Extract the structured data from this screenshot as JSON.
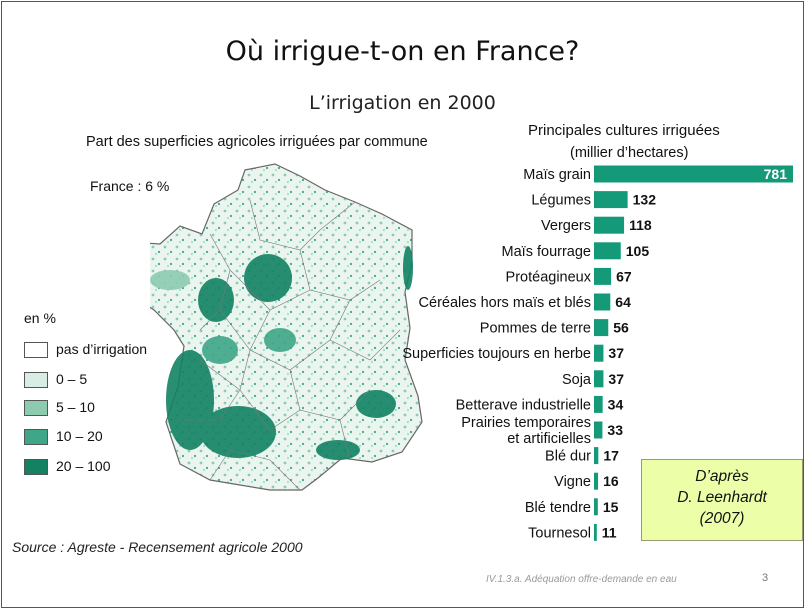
{
  "slide": {
    "title": "Où irrigue-t-on en France?",
    "subtitle": "L’irrigation en 2000",
    "footer": "IV.1.3.a. Adéquation offre-demande en eau",
    "page_number": "3"
  },
  "map": {
    "title": "Part des superficies agricoles irriguées par commune",
    "france_label": "France : 6 %",
    "legend_title": "en %",
    "legend": [
      {
        "label": "pas d’irrigation",
        "color": "#ffffff"
      },
      {
        "label": "0 – 5",
        "color": "#d8ede3"
      },
      {
        "label": "5 – 10",
        "color": "#8dcbb1"
      },
      {
        "label": "10 – 20",
        "color": "#3fa688"
      },
      {
        "label": "20 – 100",
        "color": "#128263"
      }
    ],
    "source": "Source : Agreste - Recensement agricole 2000"
  },
  "credit": {
    "line1": "D’après",
    "line2": "D. Leenhardt",
    "line3": "(2007)"
  },
  "colors": {
    "bar": "#159a79",
    "credit_box": "#ecffa8"
  },
  "chart_data": {
    "type": "bar",
    "orientation": "horizontal",
    "title": "Principales cultures irriguées",
    "unit": "(millier d’hectares)",
    "categories": [
      "Maïs grain",
      "Légumes",
      "Vergers",
      "Maïs fourrage",
      "Protéagineux",
      "Céréales hors maïs et blés",
      "Pommes de terre",
      "Superficies toujours en herbe",
      "Soja",
      "Betterave industrielle",
      "Prairies temporaires et artificielles",
      "Blé dur",
      "Vigne",
      "Blé tendre",
      "Tournesol"
    ],
    "values": [
      781,
      132,
      118,
      105,
      67,
      64,
      56,
      37,
      37,
      34,
      33,
      17,
      16,
      15,
      11
    ]
  }
}
